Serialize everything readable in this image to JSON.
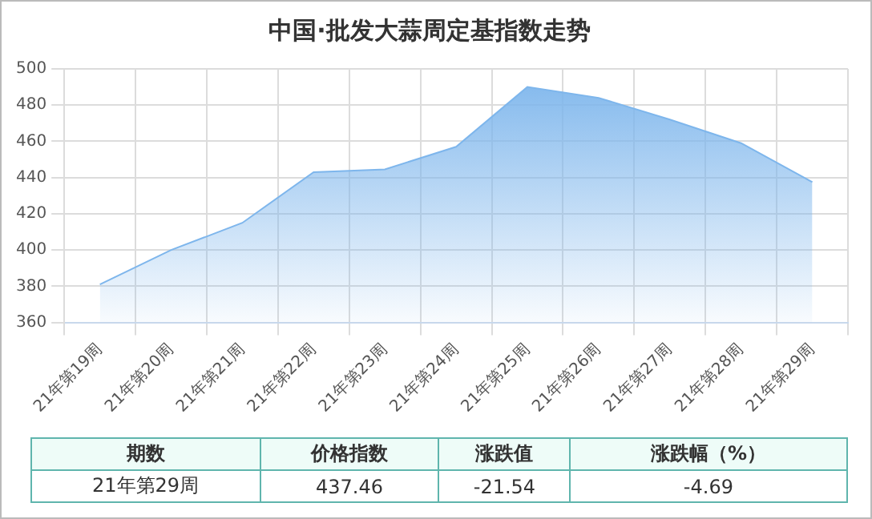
{
  "chart_data": {
    "type": "area",
    "title": "中国·批发大蒜周定基指数走势",
    "categories": [
      "21年第19周",
      "21年第20周",
      "21年第21周",
      "21年第22周",
      "21年第23周",
      "21年第24周",
      "21年第25周",
      "21年第26周",
      "21年第27周",
      "21年第28周",
      "21年第29周"
    ],
    "series": [
      {
        "color": "#7eb6ec",
        "values": [
          381,
          400,
          415,
          443,
          444.5,
          457,
          490,
          484,
          472,
          459,
          437.46
        ]
      }
    ],
    "ylim": [
      360,
      500
    ],
    "yticks": [
      360,
      380,
      400,
      420,
      440,
      460,
      480,
      500
    ],
    "grid": true,
    "marker": "none",
    "legend": false,
    "annotations": [
      "期数",
      "价格指数",
      "涨跌值",
      "涨跌幅（%）",
      "21年第29周",
      "437.46",
      "-21.54",
      "-4.69"
    ]
  }
}
